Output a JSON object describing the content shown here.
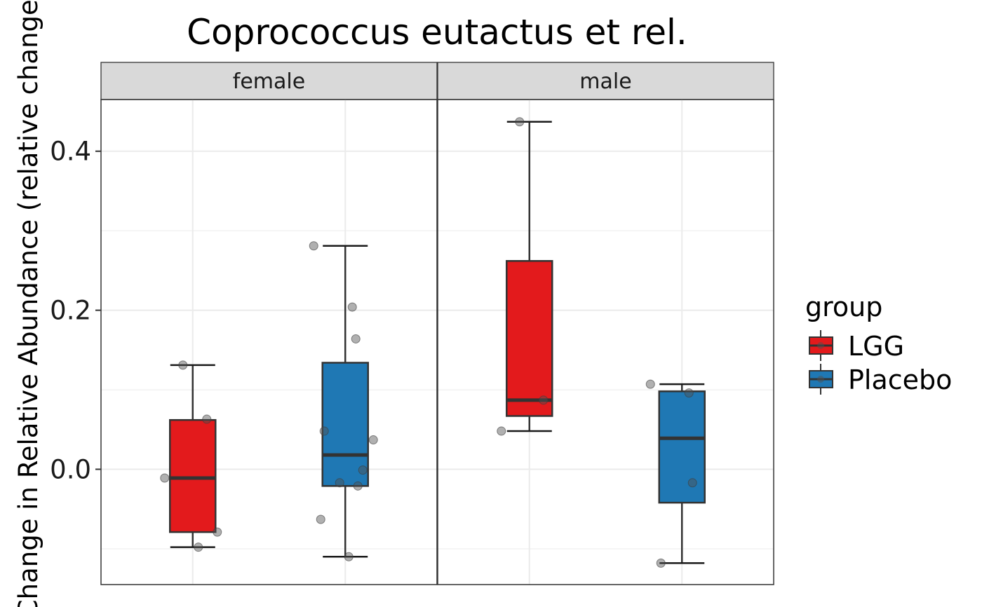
{
  "chart_data": {
    "type": "box",
    "title": "Coprococcus eutactus et rel.",
    "ylabel": "Change in Relative Abundance (relative change)",
    "xlabel": "",
    "ylim": [
      -0.145,
      0.465
    ],
    "y_ticks": [
      0.0,
      0.2,
      0.4
    ],
    "y_tick_labels": [
      "0.0",
      "0.2",
      "0.4"
    ],
    "grid": true,
    "legend": {
      "title": "group",
      "position": "right",
      "entries": [
        {
          "name": "LGG",
          "color": "#E31A1C"
        },
        {
          "name": "Placebo",
          "color": "#1F78B4"
        }
      ]
    },
    "facets": [
      {
        "label": "female",
        "boxes": [
          {
            "group": "LGG",
            "whisker_low": -0.098,
            "q1": -0.079,
            "median": -0.011,
            "q3": 0.062,
            "whisker_high": 0.131,
            "points": [
              0.131,
              0.063,
              -0.011,
              -0.079,
              -0.098
            ]
          },
          {
            "group": "Placebo",
            "whisker_low": -0.11,
            "q1": -0.021,
            "median": 0.018,
            "q3": 0.134,
            "whisker_high": 0.281,
            "points": [
              0.281,
              0.204,
              0.164,
              0.048,
              0.037,
              -0.001,
              -0.017,
              -0.021,
              -0.063,
              -0.11
            ]
          }
        ]
      },
      {
        "label": "male",
        "boxes": [
          {
            "group": "LGG",
            "whisker_low": 0.048,
            "q1": 0.067,
            "median": 0.087,
            "q3": 0.262,
            "whisker_high": 0.437,
            "points": [
              0.437,
              0.087,
              0.048
            ]
          },
          {
            "group": "Placebo",
            "whisker_low": -0.118,
            "q1": -0.042,
            "median": 0.039,
            "q3": 0.098,
            "whisker_high": 0.107,
            "points": [
              0.107,
              0.096,
              -0.017,
              -0.118
            ]
          }
        ]
      }
    ]
  }
}
